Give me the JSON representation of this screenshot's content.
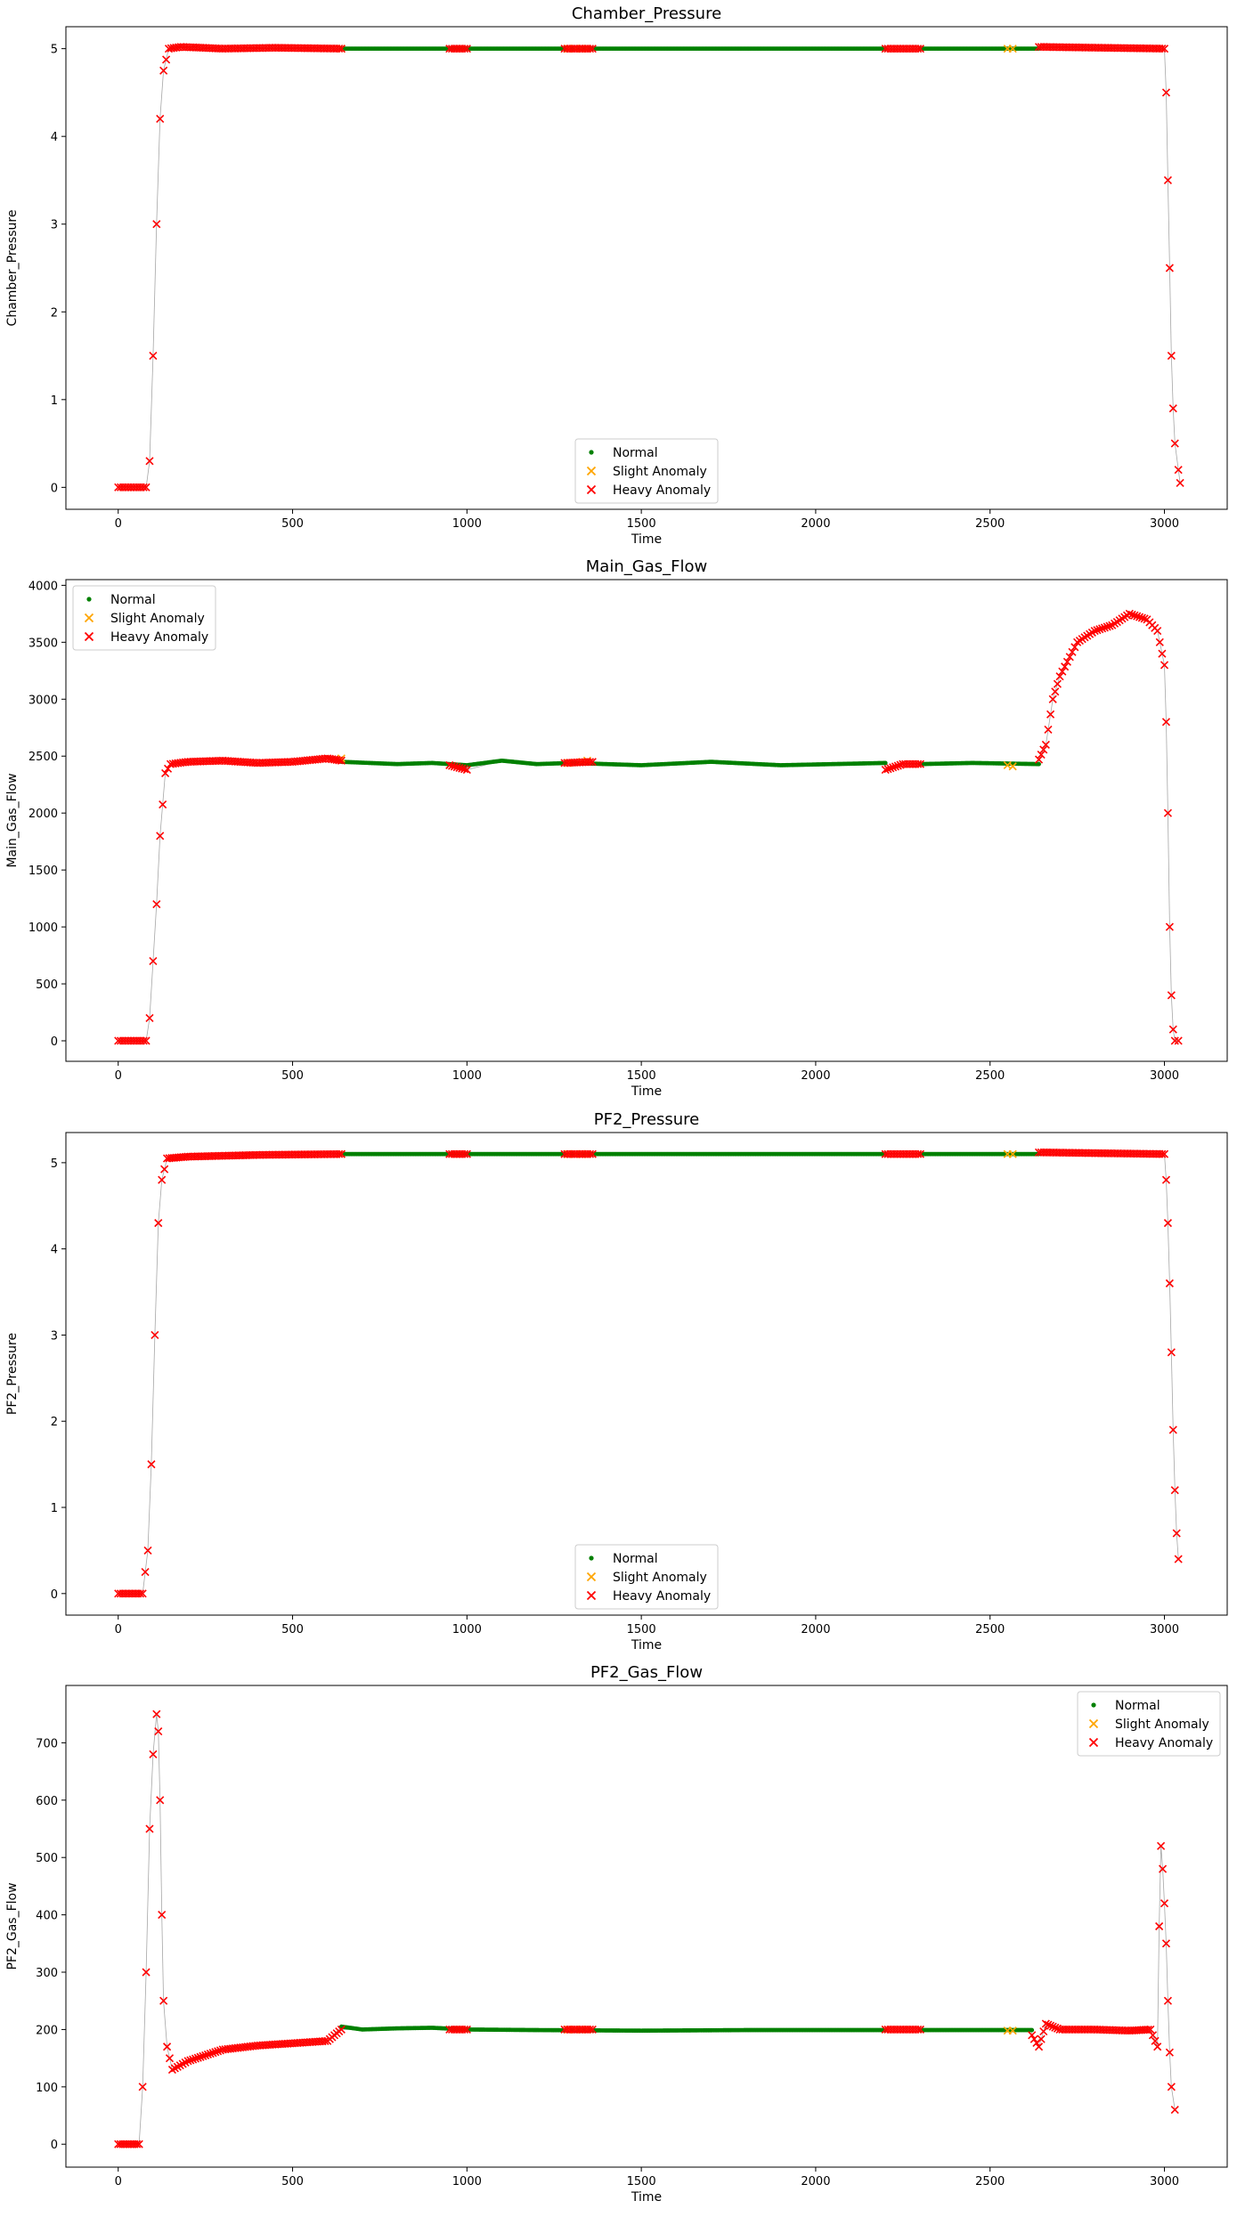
{
  "legend_labels": {
    "normal": "Normal",
    "slight": "Slight Anomaly",
    "heavy": "Heavy Anomaly"
  },
  "colors": {
    "normal": "#008000",
    "slight": "#FFA500",
    "heavy": "#FF0000",
    "line": "#808080"
  },
  "chart_data": [
    {
      "type": "scatter",
      "title": "Chamber_Pressure",
      "xlabel": "Time",
      "ylabel": "Chamber_Pressure",
      "xlim": [
        -150,
        3180
      ],
      "ylim": [
        -0.25,
        5.25
      ],
      "xticks": [
        0,
        500,
        1000,
        1500,
        2000,
        2500,
        3000
      ],
      "yticks": [
        0,
        1,
        2,
        3,
        4,
        5
      ],
      "legend_position": "lower center",
      "series": [
        {
          "name": "Normal",
          "marker": "dot",
          "segments": [
            [
              [
                640,
                5.0
              ],
              [
                2200,
                5.0
              ]
            ],
            [
              [
                2300,
                5.0
              ],
              [
                2640,
                5.0
              ]
            ]
          ]
        },
        {
          "name": "Slight Anomaly",
          "marker": "x",
          "points": [
            [
              640,
              5.0
            ],
            [
              1290,
              5.0
            ],
            [
              1310,
              5.0
            ],
            [
              1330,
              5.0
            ],
            [
              1345,
              5.0
            ],
            [
              2550,
              5.0
            ],
            [
              2565,
              5.0
            ]
          ]
        },
        {
          "name": "Heavy Anomaly",
          "marker": "x",
          "segments": [
            [
              [
                0,
                0.0
              ],
              [
                80,
                0.0
              ],
              [
                90,
                0.3
              ],
              [
                100,
                1.5
              ],
              [
                110,
                3.0
              ],
              [
                120,
                4.2
              ],
              [
                130,
                4.75
              ],
              [
                145,
                5.0
              ],
              [
                180,
                5.02
              ],
              [
                300,
                5.0
              ],
              [
                450,
                5.01
              ],
              [
                640,
                5.0
              ]
            ],
            [
              [
                950,
                5.0
              ],
              [
                1000,
                5.0
              ]
            ],
            [
              [
                1280,
                5.0
              ],
              [
                1360,
                5.0
              ]
            ],
            [
              [
                2200,
                5.0
              ],
              [
                2300,
                5.0
              ]
            ],
            [
              [
                2640,
                5.02
              ],
              [
                3000,
                5.0
              ],
              [
                3005,
                4.5
              ],
              [
                3010,
                3.5
              ],
              [
                3015,
                2.5
              ],
              [
                3020,
                1.5
              ],
              [
                3025,
                0.9
              ],
              [
                3030,
                0.5
              ],
              [
                3040,
                0.2
              ],
              [
                3045,
                0.05
              ]
            ]
          ]
        }
      ]
    },
    {
      "type": "scatter",
      "title": "Main_Gas_Flow",
      "xlabel": "Time",
      "ylabel": "Main_Gas_Flow",
      "xlim": [
        -150,
        3180
      ],
      "ylim": [
        -180,
        4050
      ],
      "xticks": [
        0,
        500,
        1000,
        1500,
        2000,
        2500,
        3000
      ],
      "yticks": [
        0,
        500,
        1000,
        1500,
        2000,
        2500,
        3000,
        3500,
        4000
      ],
      "legend_position": "upper left",
      "series": [
        {
          "name": "Normal",
          "marker": "dot",
          "segments": [
            [
              [
                640,
                2450
              ],
              [
                800,
                2430
              ],
              [
                900,
                2440
              ],
              [
                1000,
                2420
              ],
              [
                1100,
                2460
              ],
              [
                1200,
                2430
              ],
              [
                1300,
                2440
              ],
              [
                1500,
                2420
              ],
              [
                1700,
                2450
              ],
              [
                1900,
                2420
              ],
              [
                2200,
                2440
              ]
            ],
            [
              [
                2300,
                2430
              ],
              [
                2450,
                2440
              ],
              [
                2640,
                2430
              ]
            ]
          ]
        },
        {
          "name": "Slight Anomaly",
          "marker": "x",
          "points": [
            [
              1290,
              2440
            ],
            [
              1330,
              2450
            ],
            [
              1345,
              2460
            ],
            [
              2550,
              2420
            ],
            [
              2565,
              2410
            ],
            [
              640,
              2480
            ]
          ]
        },
        {
          "name": "Heavy Anomaly",
          "marker": "x",
          "segments": [
            [
              [
                0,
                0
              ],
              [
                80,
                0
              ],
              [
                90,
                200
              ],
              [
                100,
                700
              ],
              [
                110,
                1200
              ],
              [
                120,
                1800
              ],
              [
                135,
                2350
              ],
              [
                150,
                2430
              ],
              [
                200,
                2450
              ],
              [
                300,
                2460
              ],
              [
                400,
                2440
              ],
              [
                500,
                2450
              ],
              [
                600,
                2480
              ],
              [
                640,
                2460
              ]
            ],
            [
              [
                950,
                2420
              ],
              [
                1000,
                2380
              ]
            ],
            [
              [
                1280,
                2440
              ],
              [
                1360,
                2450
              ]
            ],
            [
              [
                2200,
                2380
              ],
              [
                2250,
                2430
              ],
              [
                2300,
                2430
              ]
            ],
            [
              [
                2640,
                2470
              ],
              [
                2660,
                2600
              ],
              [
                2680,
                3000
              ],
              [
                2700,
                3200
              ],
              [
                2750,
                3500
              ],
              [
                2800,
                3600
              ],
              [
                2850,
                3650
              ],
              [
                2900,
                3750
              ],
              [
                2950,
                3700
              ],
              [
                2980,
                3600
              ],
              [
                3000,
                3300
              ],
              [
                3005,
                2800
              ],
              [
                3010,
                2000
              ],
              [
                3015,
                1000
              ],
              [
                3020,
                400
              ],
              [
                3025,
                100
              ],
              [
                3030,
                0
              ],
              [
                3040,
                0
              ]
            ]
          ]
        }
      ]
    },
    {
      "type": "scatter",
      "title": "PF2_Pressure",
      "xlabel": "Time",
      "ylabel": "PF2_Pressure",
      "xlim": [
        -150,
        3180
      ],
      "ylim": [
        -0.25,
        5.35
      ],
      "xticks": [
        0,
        500,
        1000,
        1500,
        2000,
        2500,
        3000
      ],
      "yticks": [
        0,
        1,
        2,
        3,
        4,
        5
      ],
      "legend_position": "lower center",
      "series": [
        {
          "name": "Normal",
          "marker": "dot",
          "segments": [
            [
              [
                640,
                5.1
              ],
              [
                2200,
                5.1
              ]
            ],
            [
              [
                2300,
                5.1
              ],
              [
                2640,
                5.1
              ]
            ]
          ]
        },
        {
          "name": "Slight Anomaly",
          "marker": "x",
          "points": [
            [
              640,
              5.1
            ],
            [
              1290,
              5.1
            ],
            [
              1310,
              5.1
            ],
            [
              1330,
              5.1
            ],
            [
              1345,
              5.1
            ],
            [
              2550,
              5.1
            ],
            [
              2565,
              5.1
            ]
          ]
        },
        {
          "name": "Heavy Anomaly",
          "marker": "x",
          "segments": [
            [
              [
                0,
                0.0
              ],
              [
                70,
                0.0
              ],
              [
                85,
                0.5
              ],
              [
                95,
                1.5
              ],
              [
                105,
                3.0
              ],
              [
                115,
                4.3
              ],
              [
                125,
                4.8
              ],
              [
                140,
                5.05
              ],
              [
                200,
                5.07
              ],
              [
                400,
                5.09
              ],
              [
                640,
                5.1
              ]
            ],
            [
              [
                950,
                5.1
              ],
              [
                1000,
                5.1
              ]
            ],
            [
              [
                1280,
                5.1
              ],
              [
                1360,
                5.1
              ]
            ],
            [
              [
                2200,
                5.1
              ],
              [
                2300,
                5.1
              ]
            ],
            [
              [
                2640,
                5.12
              ],
              [
                3000,
                5.1
              ],
              [
                3005,
                4.8
              ],
              [
                3010,
                4.3
              ],
              [
                3015,
                3.6
              ],
              [
                3020,
                2.8
              ],
              [
                3025,
                1.9
              ],
              [
                3030,
                1.2
              ],
              [
                3035,
                0.7
              ],
              [
                3040,
                0.4
              ]
            ]
          ]
        }
      ]
    },
    {
      "type": "scatter",
      "title": "PF2_Gas_Flow",
      "xlabel": "Time",
      "ylabel": "PF2_Gas_Flow",
      "xlim": [
        -150,
        3180
      ],
      "ylim": [
        -40,
        800
      ],
      "xticks": [
        0,
        500,
        1000,
        1500,
        2000,
        2500,
        3000
      ],
      "yticks": [
        0,
        100,
        200,
        300,
        400,
        500,
        600,
        700
      ],
      "legend_position": "upper right",
      "series": [
        {
          "name": "Normal",
          "marker": "dot",
          "segments": [
            [
              [
                640,
                205
              ],
              [
                700,
                200
              ],
              [
                800,
                202
              ],
              [
                900,
                203
              ],
              [
                1000,
                200
              ],
              [
                1200,
                199
              ],
              [
                1500,
                198
              ],
              [
                1800,
                199
              ],
              [
                2200,
                199
              ]
            ],
            [
              [
                2300,
                199
              ],
              [
                2450,
                199
              ],
              [
                2620,
                199
              ]
            ]
          ]
        },
        {
          "name": "Slight Anomaly",
          "marker": "x",
          "points": [
            [
              1290,
              200
            ],
            [
              1310,
              200
            ],
            [
              1330,
              200
            ],
            [
              1345,
              200
            ],
            [
              2550,
              198
            ],
            [
              2565,
              198
            ]
          ]
        },
        {
          "name": "Heavy Anomaly",
          "marker": "x",
          "segments": [
            [
              [
                0,
                0
              ],
              [
                60,
                0
              ],
              [
                70,
                100
              ],
              [
                80,
                300
              ],
              [
                90,
                550
              ],
              [
                100,
                680
              ],
              [
                110,
                750
              ],
              [
                115,
                720
              ],
              [
                120,
                600
              ],
              [
                125,
                400
              ],
              [
                130,
                250
              ],
              [
                140,
                170
              ],
              [
                155,
                130
              ],
              [
                200,
                145
              ],
              [
                300,
                165
              ],
              [
                400,
                172
              ],
              [
                500,
                176
              ],
              [
                600,
                180
              ],
              [
                640,
                200
              ]
            ],
            [
              [
                950,
                200
              ],
              [
                1000,
                200
              ]
            ],
            [
              [
                1280,
                200
              ],
              [
                1360,
                200
              ]
            ],
            [
              [
                2200,
                200
              ],
              [
                2300,
                200
              ]
            ],
            [
              [
                2620,
                190
              ],
              [
                2640,
                170
              ],
              [
                2660,
                210
              ],
              [
                2700,
                200
              ],
              [
                2800,
                200
              ],
              [
                2900,
                198
              ],
              [
                2960,
                200
              ],
              [
                2980,
                170
              ],
              [
                2985,
                380
              ],
              [
                2990,
                520
              ],
              [
                2995,
                480
              ],
              [
                3000,
                420
              ],
              [
                3005,
                350
              ],
              [
                3010,
                250
              ],
              [
                3015,
                160
              ],
              [
                3020,
                100
              ],
              [
                3030,
                60
              ]
            ]
          ]
        }
      ]
    }
  ]
}
